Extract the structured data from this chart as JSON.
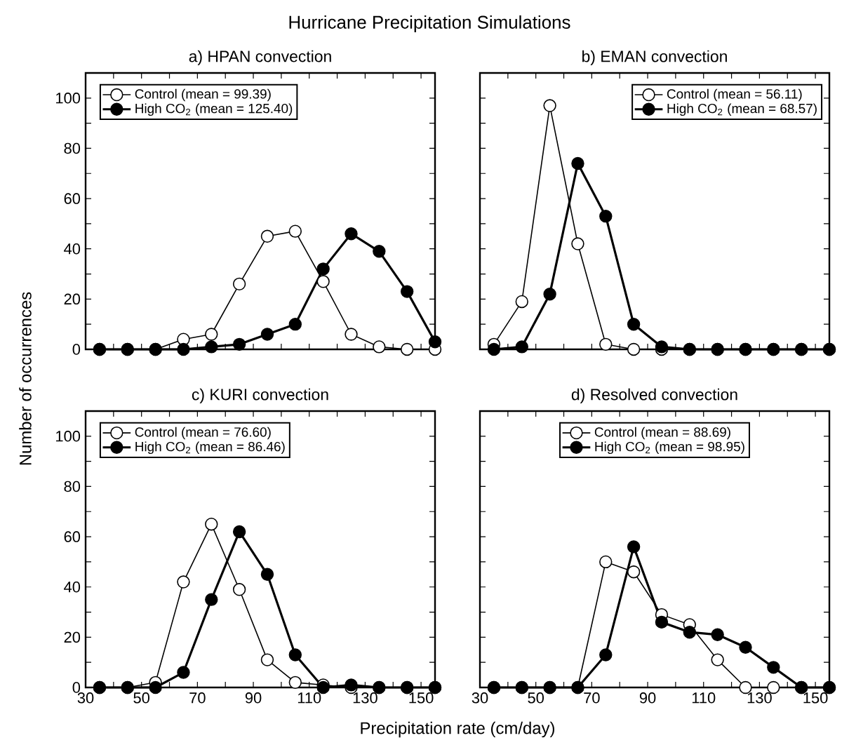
{
  "chart_data": [
    {
      "type": "line",
      "title": "a) HPAN convection",
      "annotations": [
        "Hurricane Precipitation Simulations"
      ],
      "x": [
        35,
        45,
        55,
        65,
        75,
        85,
        95,
        105,
        115,
        125,
        135,
        145,
        155
      ],
      "series": [
        {
          "name": "Control (mean = 99.39)",
          "color": "#000000",
          "values": [
            0,
            0,
            0,
            4,
            6,
            26,
            45,
            47,
            27,
            6,
            1,
            0,
            0
          ]
        },
        {
          "name": "High CO$_{2}$ (mean = 125.40)",
          "color": "#000000",
          "values": [
            0,
            0,
            0,
            0,
            1,
            2,
            6,
            10,
            32,
            46,
            39,
            23,
            3
          ]
        }
      ],
      "xlim": [
        30,
        155
      ],
      "ylim": [
        0,
        110
      ],
      "xticks": [
        30,
        {
          "value": 40,
          "label": null
        },
        50,
        {
          "value": 60,
          "label": null
        },
        70,
        {
          "value": 80,
          "label": null
        },
        90,
        {
          "value": 100,
          "label": null
        },
        110,
        {
          "value": 120,
          "label": null
        },
        130,
        {
          "value": 140,
          "label": null
        },
        150
      ],
      "yticks": [
        0,
        {
          "value": 10,
          "label": null
        },
        20,
        {
          "value": 30,
          "label": null
        },
        40,
        {
          "value": 50,
          "label": null
        },
        60,
        {
          "value": 70,
          "label": null
        },
        80,
        {
          "value": 90,
          "label": null
        },
        100,
        {
          "value": 110,
          "label": null
        }
      ],
      "tick_labels": "y",
      "legend": "top left",
      "marker": "circle",
      "grid": false
    },
    {
      "type": "line",
      "title": "b) EMAN convection",
      "x": [
        35,
        45,
        55,
        65,
        75,
        85,
        95,
        105,
        115,
        125,
        135,
        145,
        155
      ],
      "series": [
        {
          "name": "Control (mean = 56.11)",
          "color": "#000000",
          "values": [
            2,
            19,
            97,
            42,
            2,
            0,
            0,
            0,
            0,
            0,
            0,
            0,
            0
          ]
        },
        {
          "name": "High CO$_{2}$ (mean = 68.57)",
          "color": "#000000",
          "values": [
            0,
            1,
            22,
            74,
            53,
            10,
            1,
            0,
            0,
            0,
            0,
            0,
            0
          ]
        }
      ],
      "xlim": [
        30,
        155
      ],
      "ylim": [
        0,
        110
      ],
      "xticks": [
        30,
        {
          "value": 40,
          "label": null
        },
        50,
        {
          "value": 60,
          "label": null
        },
        70,
        {
          "value": 80,
          "label": null
        },
        90,
        {
          "value": 100,
          "label": null
        },
        110,
        {
          "value": 120,
          "label": null
        },
        130,
        {
          "value": 140,
          "label": null
        },
        150
      ],
      "yticks": [
        0,
        {
          "value": 10,
          "label": null
        },
        20,
        {
          "value": 30,
          "label": null
        },
        40,
        {
          "value": 50,
          "label": null
        },
        60,
        {
          "value": 70,
          "label": null
        },
        80,
        {
          "value": 90,
          "label": null
        },
        100,
        {
          "value": 110,
          "label": null
        }
      ],
      "tick_labels": false,
      "legend": "top right",
      "marker": "circle",
      "grid": false
    },
    {
      "type": "line",
      "title": "c) KURI convection",
      "xlabel": "Precipitation rate (cm/day)",
      "ylabel": "Number of occurrences",
      "x": [
        35,
        45,
        55,
        65,
        75,
        85,
        95,
        105,
        115,
        125,
        135,
        145,
        155
      ],
      "series": [
        {
          "name": "Control (mean = 76.60)",
          "color": "#000000",
          "values": [
            0,
            0,
            2,
            42,
            65,
            39,
            11,
            2,
            1,
            0,
            0,
            0,
            0
          ]
        },
        {
          "name": "High CO$_{2}$ (mean = 86.46)",
          "color": "#000000",
          "values": [
            0,
            0,
            0,
            6,
            35,
            62,
            45,
            13,
            0,
            1,
            0,
            0,
            0
          ]
        }
      ],
      "xlim": [
        30,
        155
      ],
      "ylim": [
        0,
        110
      ],
      "xticks": [
        30,
        {
          "value": 40,
          "label": null
        },
        50,
        {
          "value": 60,
          "label": null
        },
        70,
        {
          "value": 80,
          "label": null
        },
        90,
        {
          "value": 100,
          "label": null
        },
        110,
        {
          "value": 120,
          "label": null
        },
        130,
        {
          "value": 140,
          "label": null
        },
        150
      ],
      "yticks": [
        0,
        {
          "value": 10,
          "label": null
        },
        20,
        {
          "value": 30,
          "label": null
        },
        40,
        {
          "value": 50,
          "label": null
        },
        60,
        {
          "value": 70,
          "label": null
        },
        80,
        {
          "value": 90,
          "label": null
        },
        100,
        {
          "value": 110,
          "label": null
        }
      ],
      "legend": "top left",
      "marker": "circle",
      "grid": false
    },
    {
      "type": "line",
      "title": "d) Resolved convection",
      "x": [
        35,
        45,
        55,
        65,
        75,
        85,
        95,
        105,
        115,
        125,
        135,
        145,
        155
      ],
      "series": [
        {
          "name": "Control (mean = 88.69)",
          "color": "#000000",
          "values": [
            0,
            0,
            0,
            0,
            50,
            46,
            29,
            25,
            11,
            0,
            0,
            0,
            0
          ]
        },
        {
          "name": "High CO$_{2}$ (mean = 98.95)",
          "color": "#000000",
          "values": [
            0,
            0,
            0,
            0,
            13,
            56,
            26,
            22,
            21,
            16,
            8,
            0,
            0
          ]
        }
      ],
      "xlim": [
        30,
        155
      ],
      "ylim": [
        0,
        110
      ],
      "xticks": [
        30,
        {
          "value": 40,
          "label": null
        },
        50,
        {
          "value": 60,
          "label": null
        },
        70,
        {
          "value": 80,
          "label": null
        },
        90,
        {
          "value": 100,
          "label": null
        },
        110,
        {
          "value": 120,
          "label": null
        },
        130,
        {
          "value": 140,
          "label": null
        },
        150
      ],
      "yticks": [
        0,
        {
          "value": 10,
          "label": null
        },
        20,
        {
          "value": 30,
          "label": null
        },
        40,
        {
          "value": 50,
          "label": null
        },
        60,
        {
          "value": 70,
          "label": null
        },
        80,
        {
          "value": 90,
          "label": null
        },
        100,
        {
          "value": 110,
          "label": null
        }
      ],
      "tick_labels": "x",
      "legend": "top",
      "marker": "circle",
      "grid": false
    }
  ]
}
